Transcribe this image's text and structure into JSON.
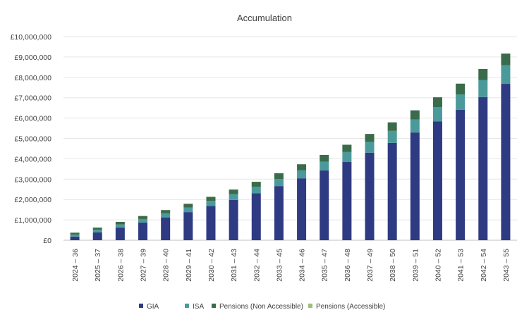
{
  "chart_data": {
    "type": "bar",
    "stacked": true,
    "title": "Accumulation",
    "xlabel": "",
    "ylabel": "",
    "ylim": [
      0,
      10000000
    ],
    "yticks": [
      "£0",
      "£1,000,000",
      "£2,000,000",
      "£3,000,000",
      "£4,000,000",
      "£5,000,000",
      "£6,000,000",
      "£7,000,000",
      "£8,000,000",
      "£9,000,000",
      "£10,000,000"
    ],
    "ytick_values": [
      0,
      1000000,
      2000000,
      3000000,
      4000000,
      5000000,
      6000000,
      7000000,
      8000000,
      9000000,
      10000000
    ],
    "grid": true,
    "legend_position": "bottom",
    "categories": [
      "2024 – 36",
      "2025 – 37",
      "2026 – 38",
      "2027 – 39",
      "2028 – 40",
      "2029 – 41",
      "2030 – 42",
      "2031 – 43",
      "2032 – 44",
      "2033 – 45",
      "2034 – 46",
      "2035 – 47",
      "2036 – 48",
      "2037 – 49",
      "2038 – 50",
      "2039 – 51",
      "2040 – 52",
      "2041 – 53",
      "2042 – 54",
      "2043 – 55"
    ],
    "series": [
      {
        "name": "GIA",
        "color": "#2e3b82",
        "values": [
          180000,
          380000,
          620000,
          870000,
          1120000,
          1380000,
          1680000,
          1980000,
          2310000,
          2660000,
          3040000,
          3430000,
          3840000,
          4300000,
          4780000,
          5290000,
          5830000,
          6410000,
          7030000,
          7680000
        ]
      },
      {
        "name": "ISA",
        "color": "#4a9a9c",
        "values": [
          100000,
          130000,
          150000,
          170000,
          200000,
          230000,
          250000,
          280000,
          310000,
          350000,
          390000,
          430000,
          490000,
          530000,
          590000,
          640000,
          700000,
          750000,
          830000,
          910000
        ]
      },
      {
        "name": "Pensions (Non Accessible)",
        "color": "#3a6b4a",
        "values": [
          90000,
          110000,
          130000,
          150000,
          160000,
          180000,
          200000,
          230000,
          250000,
          280000,
          300000,
          330000,
          360000,
          390000,
          420000,
          450000,
          490000,
          530000,
          550000,
          580000
        ]
      },
      {
        "name": "Pensions (Accessible)",
        "color": "#9bbf7a",
        "values": [
          0,
          0,
          0,
          0,
          0,
          0,
          0,
          0,
          0,
          0,
          0,
          0,
          0,
          0,
          0,
          0,
          0,
          0,
          0,
          0
        ]
      }
    ]
  }
}
